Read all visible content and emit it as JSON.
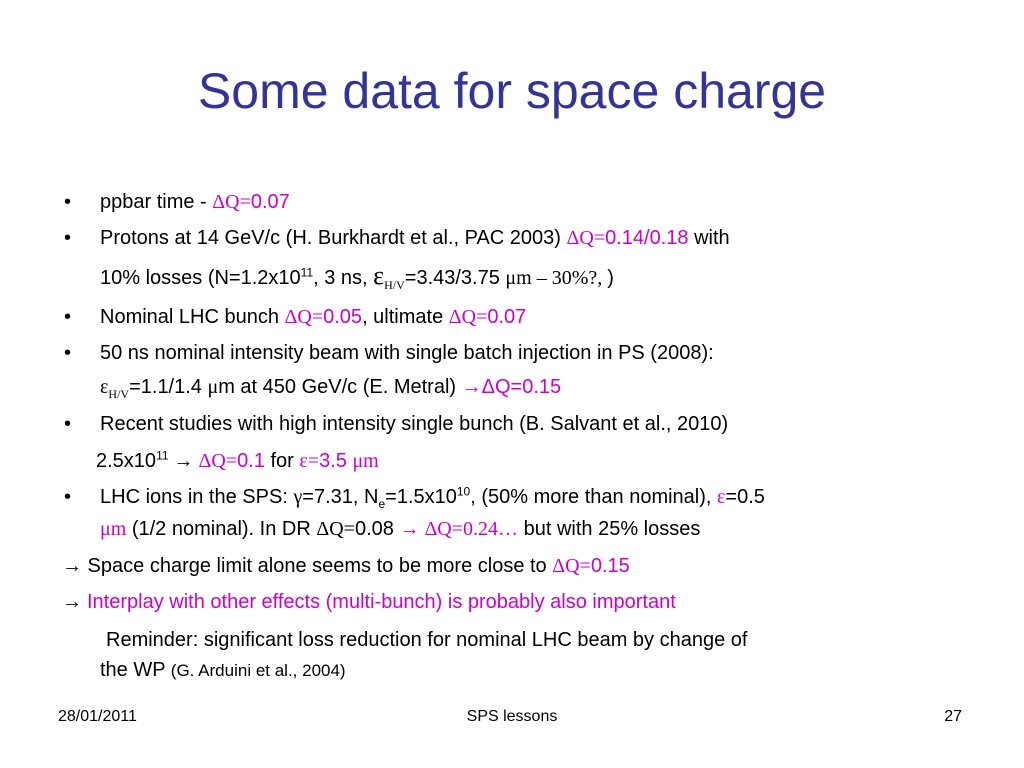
{
  "slide": {
    "title": "Some data for space charge",
    "bullet_char": "•",
    "b1": {
      "text": "ppbar time - ",
      "q_label": "ΔQ=",
      "q_val": "0.07"
    },
    "b2": {
      "l1_text": "Protons at 14 GeV/c (H. Burkhardt et al., PAC 2003) ",
      "q_label": "ΔQ=",
      "q_val": "0.14/0.18",
      "with": " with",
      "l2_a": "10% losses (N=1.2x10",
      "l2_sup": "11",
      "l2_b": ", 3 ns, ",
      "eps": "ε",
      "eps_sub": "H/V",
      "l2_c": "=3.43/3.75 ",
      "um": "μm – 30%?, ",
      "l2_d": ")"
    },
    "b3": {
      "text": "Nominal LHC bunch ",
      "q1_label": "ΔQ=",
      "q1_val": "0.05",
      "mid": ", ultimate ",
      "q2_label": "ΔQ=",
      "q2_val": "0.07"
    },
    "b4": {
      "l1": "50 ns nominal intensity beam with single batch injection in PS (2008):",
      "eps": "ε",
      "eps_sub": "H/V",
      "l2_a": "=1.1/1.4 ",
      "mu": "μ",
      "l2_b": "m at 450 GeV/c (E. Metral) ",
      "arrow": "→",
      "q_label": "ΔQ=0.15"
    },
    "b5": {
      "l1": "Recent studies with high intensity single bunch (B. Salvant et al., 2010)",
      "l2_a": "2.5x10",
      "l2_sup": "11",
      "l2_arrow": " →  ",
      "q_label": "ΔQ=",
      "q_val": "0.1",
      "for": " for ",
      "eps": "ε=",
      "eps_val": "3.5 ",
      "um": "μm"
    },
    "b6": {
      "l1_a": "LHC ions in the SPS:  ",
      "gamma": "γ",
      "l1_b": "=7.31, N",
      "l1_sub": "e",
      "l1_c": "=1.5x10",
      "l1_sup": "10",
      "l1_d": ", (50% more than nominal), ",
      "eps": "ε",
      "l1_e": "=0.5",
      "l2_um": "μm",
      "l2_a": " (1/2 nominal). In DR ",
      "l2_q": "ΔQ=",
      "l2_b": "0.08  ",
      "l2_arrow": "→ ",
      "l2_q2": "ΔQ=0.24…",
      "l2_c": "  but with 25% losses"
    },
    "l7": {
      "arrow": "→",
      "text": " Space charge limit alone seems to be more close to ",
      "q_label": "ΔQ=",
      "q_val": "0.15"
    },
    "l8": {
      "arrow": "→ ",
      "text": "Interplay with other effects (multi-bunch) is probably also important"
    },
    "l9": {
      "l1": "Reminder: significant loss reduction for nominal LHC beam by change of",
      "l2_a": "the WP ",
      "l2_b": "(G. Arduini et al., 2004)"
    }
  },
  "footer": {
    "date": "28/01/2011",
    "center": "SPS lessons",
    "page": "27"
  },
  "colors": {
    "title": "#333399",
    "magenta": "#cc00cc",
    "text": "#000000"
  }
}
